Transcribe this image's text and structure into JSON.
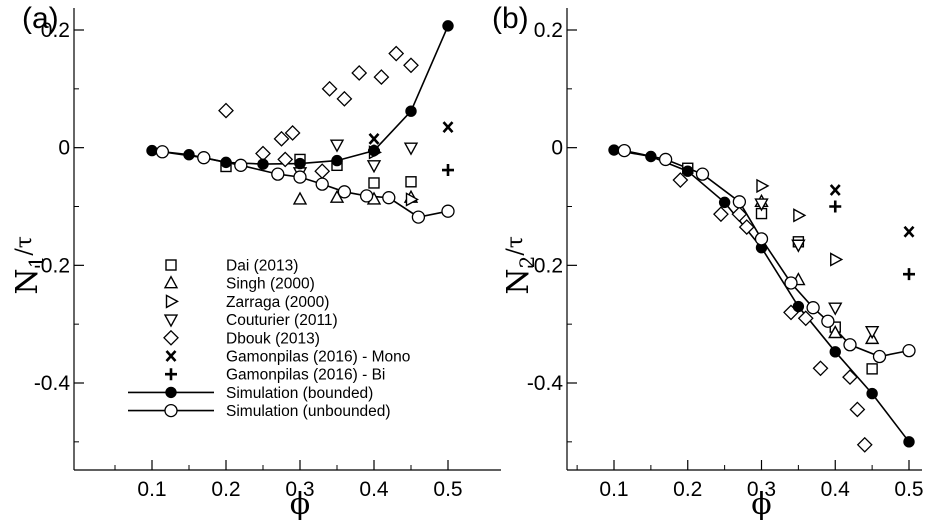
{
  "chart_data": [
    {
      "type": "scatter",
      "panel": "(a)",
      "xlabel": "ϕ",
      "ylabel_main": "N",
      "ylabel_sub": "1",
      "ylabel_tail": "/τ",
      "xlim": [
        0.05,
        0.5
      ],
      "ylim": [
        -0.52,
        0.22
      ],
      "xticks": [
        0.1,
        0.2,
        0.3,
        0.4,
        0.5
      ],
      "xtick_labels": [
        "0.1",
        "0.2",
        "0.3",
        "0.4",
        "0.5"
      ],
      "yticks": [
        0.2,
        0,
        -0.2,
        -0.4
      ],
      "ytick_labels": [
        "0.2",
        "0",
        "-0.2",
        "-0.4"
      ],
      "legend_position": "lower-left",
      "series": [
        {
          "name": "Dai  (2013)",
          "marker": "square",
          "line": false,
          "points": [
            [
              0.2,
              -0.032
            ],
            [
              0.3,
              -0.02
            ],
            [
              0.35,
              -0.03
            ],
            [
              0.4,
              -0.06
            ],
            [
              0.45,
              -0.058
            ]
          ]
        },
        {
          "name": "Singh (2000)",
          "marker": "triangle-up",
          "line": false,
          "points": [
            [
              0.3,
              -0.088
            ],
            [
              0.35,
              -0.085
            ],
            [
              0.4,
              -0.088
            ],
            [
              0.45,
              -0.085
            ]
          ]
        },
        {
          "name": "Zarraga (2000)",
          "marker": "triangle-right",
          "line": false,
          "points": [
            [
              0.4,
              -0.008
            ],
            [
              0.45,
              -0.088
            ]
          ]
        },
        {
          "name": "Couturier (2011)",
          "marker": "triangle-down",
          "line": false,
          "points": [
            [
              0.3,
              -0.042
            ],
            [
              0.35,
              0.005
            ],
            [
              0.4,
              -0.03
            ],
            [
              0.45,
              0.0
            ]
          ]
        },
        {
          "name": "Dbouk (2013)",
          "marker": "diamond",
          "line": false,
          "points": [
            [
              0.2,
              0.063
            ],
            [
              0.25,
              -0.01
            ],
            [
              0.275,
              0.015
            ],
            [
              0.29,
              0.025
            ],
            [
              0.34,
              0.1
            ],
            [
              0.36,
              0.083
            ],
            [
              0.38,
              0.127
            ],
            [
              0.41,
              0.12
            ],
            [
              0.43,
              0.16
            ],
            [
              0.45,
              0.14
            ],
            [
              0.28,
              -0.02
            ],
            [
              0.33,
              -0.04
            ]
          ]
        },
        {
          "name": "Gamonpilas (2016) - Mono",
          "marker": "x",
          "line": false,
          "points": [
            [
              0.4,
              0.015
            ],
            [
              0.5,
              0.035
            ]
          ]
        },
        {
          "name": "Gamonpilas (2016) - Bi",
          "marker": "plus",
          "line": false,
          "points": [
            [
              0.4,
              -0.005
            ],
            [
              0.5,
              -0.038
            ]
          ]
        },
        {
          "name": "Simulation (bounded)",
          "marker": "filled-circle",
          "line": true,
          "points": [
            [
              0.1,
              -0.005
            ],
            [
              0.15,
              -0.012
            ],
            [
              0.2,
              -0.025
            ],
            [
              0.25,
              -0.028
            ],
            [
              0.3,
              -0.027
            ],
            [
              0.35,
              -0.022
            ],
            [
              0.4,
              -0.005
            ],
            [
              0.45,
              0.062
            ],
            [
              0.5,
              0.207
            ]
          ]
        },
        {
          "name": "Simulation (unbounded)",
          "marker": "open-circle",
          "line": true,
          "points": [
            [
              0.114,
              -0.007
            ],
            [
              0.17,
              -0.017
            ],
            [
              0.22,
              -0.03
            ],
            [
              0.27,
              -0.045
            ],
            [
              0.3,
              -0.05
            ],
            [
              0.33,
              -0.062
            ],
            [
              0.36,
              -0.075
            ],
            [
              0.39,
              -0.082
            ],
            [
              0.42,
              -0.085
            ],
            [
              0.46,
              -0.118
            ],
            [
              0.5,
              -0.108
            ]
          ]
        }
      ]
    },
    {
      "type": "scatter",
      "panel": "(b)",
      "xlabel": "ϕ",
      "ylabel_main": "N",
      "ylabel_sub": "2",
      "ylabel_tail": "/τ",
      "xlim": [
        0.05,
        0.5
      ],
      "ylim": [
        -0.52,
        0.22
      ],
      "xticks": [
        0.1,
        0.2,
        0.3,
        0.4,
        0.5
      ],
      "xtick_labels": [
        "0.1",
        "0.2",
        "0.3",
        "0.4",
        "0.5"
      ],
      "yticks": [
        0.2,
        0,
        -0.2,
        -0.4
      ],
      "ytick_labels": [
        "0.2",
        "0",
        "-0.2",
        "-0.4"
      ],
      "series": [
        {
          "name": "Dai  (2013)",
          "marker": "square",
          "line": false,
          "points": [
            [
              0.2,
              -0.035
            ],
            [
              0.3,
              -0.112
            ],
            [
              0.35,
              -0.16
            ],
            [
              0.4,
              -0.305
            ],
            [
              0.45,
              -0.376
            ]
          ]
        },
        {
          "name": "Singh (2000)",
          "marker": "triangle-up",
          "line": false,
          "points": [
            [
              0.3,
              -0.092
            ],
            [
              0.35,
              -0.225
            ],
            [
              0.4,
              -0.315
            ],
            [
              0.45,
              -0.325
            ]
          ]
        },
        {
          "name": "Zarraga (2000)",
          "marker": "triangle-right",
          "line": false,
          "points": [
            [
              0.3,
              -0.065
            ],
            [
              0.35,
              -0.115
            ],
            [
              0.4,
              -0.19
            ]
          ]
        },
        {
          "name": "Couturier (2011)",
          "marker": "triangle-down",
          "line": false,
          "points": [
            [
              0.3,
              -0.095
            ],
            [
              0.35,
              -0.165
            ],
            [
              0.4,
              -0.272
            ],
            [
              0.45,
              -0.312
            ]
          ]
        },
        {
          "name": "Dbouk (2013)",
          "marker": "diamond",
          "line": false,
          "points": [
            [
              0.19,
              -0.055
            ],
            [
              0.245,
              -0.113
            ],
            [
              0.27,
              -0.113
            ],
            [
              0.28,
              -0.135
            ],
            [
              0.34,
              -0.28
            ],
            [
              0.36,
              -0.29
            ],
            [
              0.38,
              -0.375
            ],
            [
              0.42,
              -0.39
            ],
            [
              0.43,
              -0.445
            ],
            [
              0.44,
              -0.505
            ]
          ]
        },
        {
          "name": "Gamonpilas (2016) - Mono",
          "marker": "x",
          "line": false,
          "points": [
            [
              0.4,
              -0.072
            ],
            [
              0.5,
              -0.143
            ]
          ]
        },
        {
          "name": "Gamonpilas (2016) - Bi",
          "marker": "plus",
          "line": false,
          "points": [
            [
              0.4,
              -0.1
            ],
            [
              0.5,
              -0.215
            ]
          ]
        },
        {
          "name": "Simulation (bounded)",
          "marker": "filled-circle",
          "line": true,
          "points": [
            [
              0.1,
              -0.004
            ],
            [
              0.15,
              -0.015
            ],
            [
              0.2,
              -0.04
            ],
            [
              0.25,
              -0.093
            ],
            [
              0.3,
              -0.17
            ],
            [
              0.35,
              -0.27
            ],
            [
              0.4,
              -0.347
            ],
            [
              0.45,
              -0.418
            ],
            [
              0.5,
              -0.5
            ]
          ]
        },
        {
          "name": "Simulation (unbounded)",
          "marker": "open-circle",
          "line": true,
          "points": [
            [
              0.114,
              -0.005
            ],
            [
              0.17,
              -0.02
            ],
            [
              0.22,
              -0.045
            ],
            [
              0.27,
              -0.092
            ],
            [
              0.3,
              -0.155
            ],
            [
              0.34,
              -0.23
            ],
            [
              0.37,
              -0.272
            ],
            [
              0.39,
              -0.295
            ],
            [
              0.42,
              -0.335
            ],
            [
              0.46,
              -0.355
            ],
            [
              0.5,
              -0.345
            ]
          ]
        }
      ]
    }
  ]
}
